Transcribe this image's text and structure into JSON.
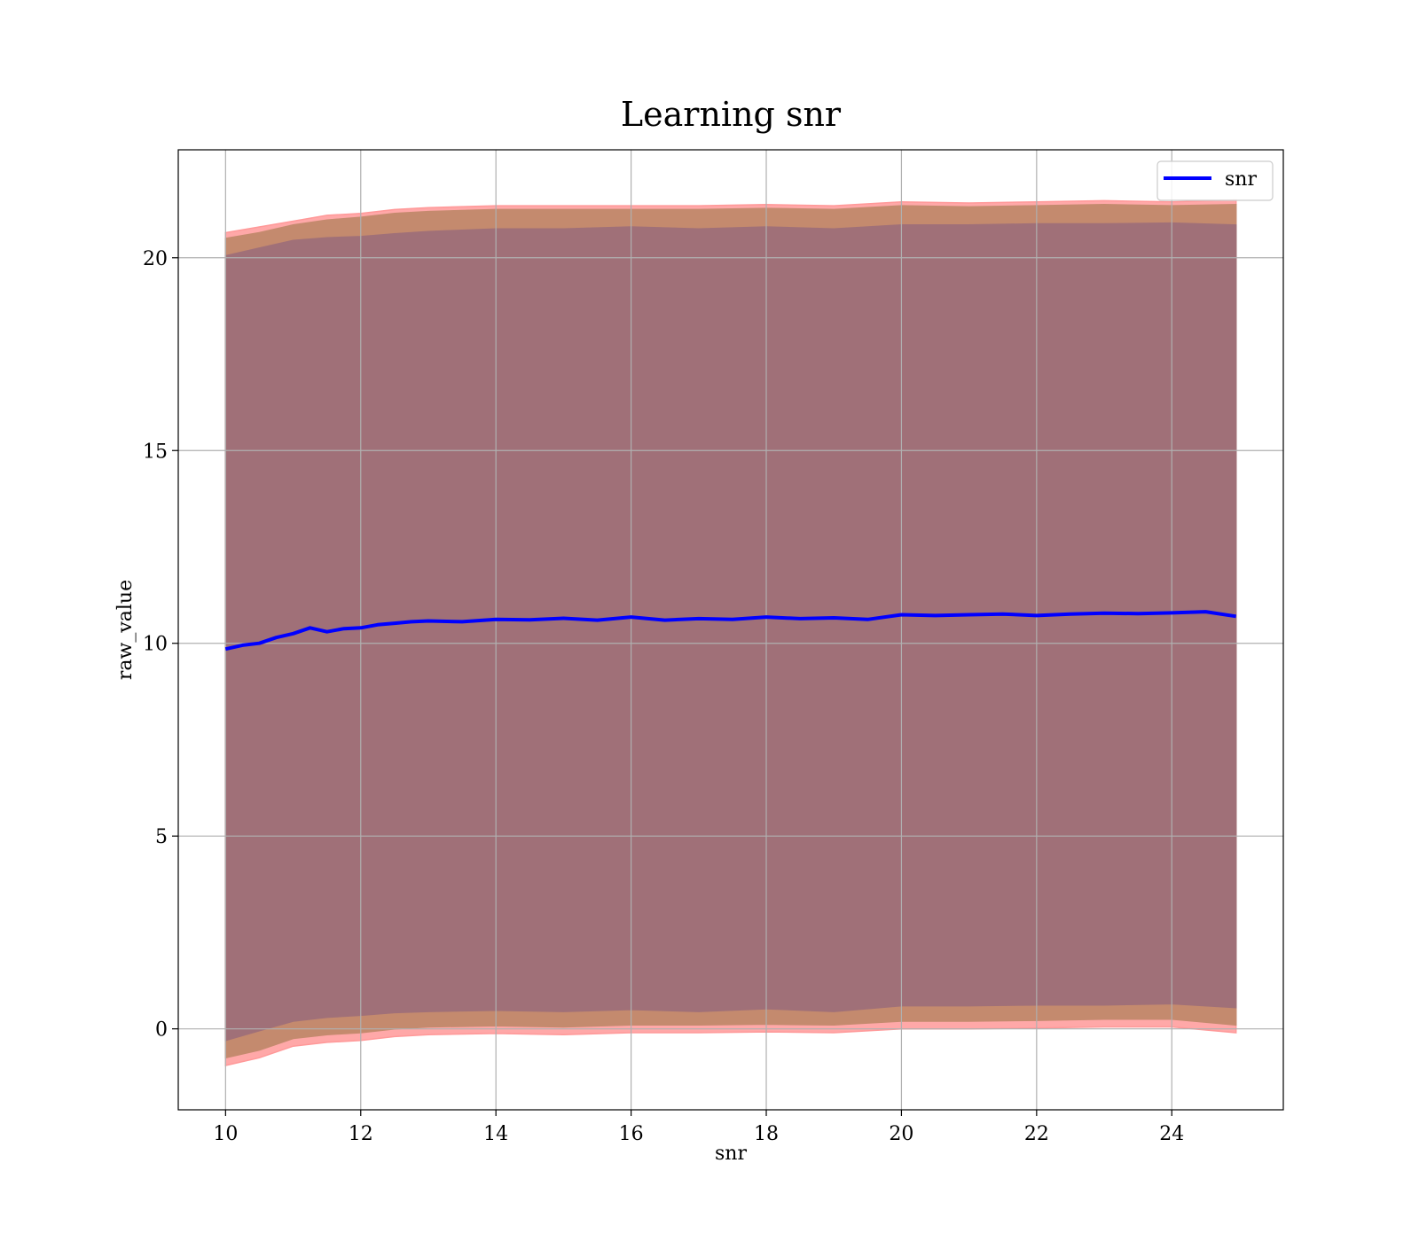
{
  "chart_data": {
    "type": "line",
    "title": "Learning snr",
    "xlabel": "snr",
    "ylabel": "raw_value",
    "xlim": [
      9.3,
      25.65
    ],
    "ylim": [
      -2.1,
      22.8
    ],
    "xticks": [
      10,
      12,
      14,
      16,
      18,
      20,
      22,
      24
    ],
    "yticks": [
      0,
      5,
      10,
      15,
      20
    ],
    "grid": true,
    "legend_position": "top-right",
    "colors": {
      "line": "#0000ff",
      "outer_band": "#ff9999",
      "middle_band": "#c48a6e",
      "inner_band": "#a07078"
    },
    "series": [
      {
        "name": "snr",
        "style": "line",
        "x": [
          10.0,
          10.25,
          10.5,
          10.75,
          11.0,
          11.25,
          11.5,
          11.75,
          12.0,
          12.25,
          12.5,
          12.75,
          13.0,
          13.5,
          14.0,
          14.5,
          15.0,
          15.5,
          16.0,
          16.5,
          17.0,
          17.5,
          18.0,
          18.5,
          19.0,
          19.5,
          20.0,
          20.5,
          21.0,
          21.5,
          22.0,
          22.5,
          23.0,
          23.5,
          24.0,
          24.5,
          24.95
        ],
        "y": [
          9.85,
          9.95,
          10.0,
          10.15,
          10.25,
          10.4,
          10.3,
          10.38,
          10.4,
          10.48,
          10.52,
          10.56,
          10.58,
          10.56,
          10.62,
          10.61,
          10.65,
          10.6,
          10.68,
          10.6,
          10.64,
          10.62,
          10.68,
          10.64,
          10.66,
          10.62,
          10.74,
          10.72,
          10.74,
          10.76,
          10.72,
          10.76,
          10.78,
          10.77,
          10.79,
          10.82,
          10.7
        ]
      }
    ],
    "bands": [
      {
        "role": "outer",
        "x": [
          10.0,
          10.5,
          11.0,
          11.5,
          12.0,
          12.5,
          13.0,
          14.0,
          15.0,
          16.0,
          17.0,
          18.0,
          19.0,
          20.0,
          21.0,
          22.0,
          23.0,
          24.0,
          24.95
        ],
        "upper": [
          20.65,
          20.8,
          20.95,
          21.1,
          21.15,
          21.25,
          21.3,
          21.35,
          21.35,
          21.35,
          21.35,
          21.38,
          21.35,
          21.45,
          21.42,
          21.45,
          21.48,
          21.45,
          21.5
        ],
        "lower": [
          -0.95,
          -0.75,
          -0.45,
          -0.35,
          -0.3,
          -0.2,
          -0.15,
          -0.12,
          -0.15,
          -0.1,
          -0.1,
          -0.08,
          -0.1,
          0.0,
          0.0,
          0.02,
          0.05,
          0.05,
          -0.1
        ]
      },
      {
        "role": "middle",
        "x": [
          10.0,
          10.5,
          11.0,
          11.5,
          12.0,
          12.5,
          13.0,
          14.0,
          15.0,
          16.0,
          17.0,
          18.0,
          19.0,
          20.0,
          21.0,
          22.0,
          23.0,
          24.0,
          24.95
        ],
        "upper": [
          20.5,
          20.65,
          20.85,
          20.98,
          21.05,
          21.15,
          21.2,
          21.25,
          21.25,
          21.25,
          21.25,
          21.28,
          21.25,
          21.35,
          21.32,
          21.35,
          21.38,
          21.35,
          21.38
        ],
        "lower": [
          -0.75,
          -0.55,
          -0.25,
          -0.15,
          -0.1,
          0.0,
          0.05,
          0.08,
          0.05,
          0.1,
          0.1,
          0.12,
          0.1,
          0.2,
          0.2,
          0.22,
          0.25,
          0.25,
          0.1
        ]
      },
      {
        "role": "inner",
        "x": [
          10.0,
          10.5,
          11.0,
          11.5,
          12.0,
          12.5,
          13.0,
          14.0,
          15.0,
          16.0,
          17.0,
          18.0,
          19.0,
          20.0,
          21.0,
          22.0,
          23.0,
          24.0,
          24.95
        ],
        "upper": [
          20.05,
          20.25,
          20.45,
          20.52,
          20.55,
          20.62,
          20.68,
          20.75,
          20.75,
          20.8,
          20.75,
          20.8,
          20.75,
          20.85,
          20.85,
          20.88,
          20.88,
          20.9,
          20.85
        ],
        "lower": [
          -0.3,
          -0.05,
          0.2,
          0.3,
          0.35,
          0.42,
          0.45,
          0.48,
          0.45,
          0.5,
          0.45,
          0.52,
          0.45,
          0.6,
          0.6,
          0.62,
          0.62,
          0.65,
          0.55
        ]
      }
    ]
  }
}
